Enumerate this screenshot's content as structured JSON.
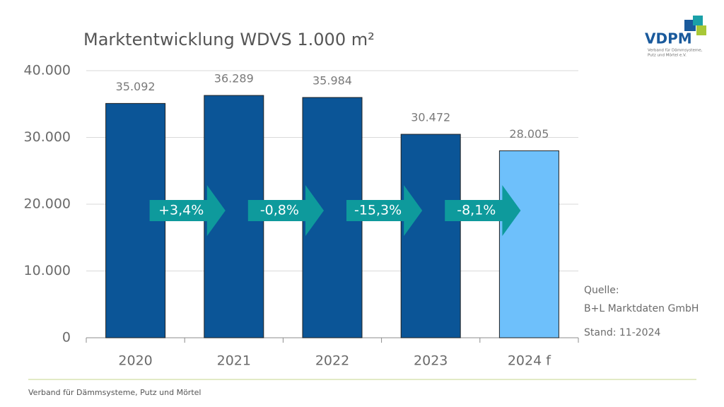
{
  "chart_data": {
    "type": "bar",
    "title": "Marktentwicklung WDVS 1.000 m²",
    "categories": [
      "2020",
      "2021",
      "2022",
      "2023",
      "2024 f"
    ],
    "values": [
      35092,
      36289,
      35984,
      30472,
      28005
    ],
    "value_labels": [
      "35.092",
      "36.289",
      "35.984",
      "30.472",
      "28.005"
    ],
    "colors": [
      "#0b5597",
      "#0b5597",
      "#0b5597",
      "#0b5597",
      "#6ec0fb"
    ],
    "ylim": [
      0,
      40000
    ],
    "yticks": [
      0,
      {
        "value": 10000,
        "label": "10.000"
      },
      {
        "value": 20000,
        "label": "20.000"
      },
      {
        "value": 30000,
        "label": "30.000"
      },
      {
        "value": 40000,
        "label": "40.000"
      }
    ],
    "grid": true,
    "annotations": [
      "+3,4%",
      "-0,8%",
      "-15,3%",
      "-8,1%"
    ],
    "source": [
      "Quelle:",
      "B+L Marktdaten GmbH",
      "Stand: 11-2024"
    ]
  },
  "logo": {
    "name": "VDPM",
    "subtitle": [
      "Verband für Dämmsysteme,",
      "Putz und Mörtel e.V."
    ]
  },
  "footer": "Verband für Dämmsysteme, Putz und Mörtel"
}
